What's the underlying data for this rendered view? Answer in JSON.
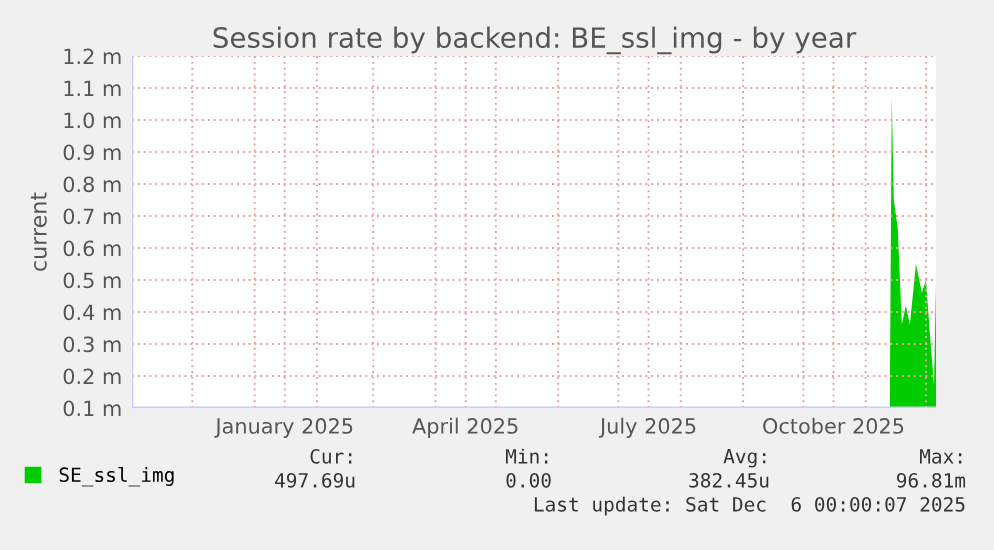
{
  "chart_data": {
    "type": "area",
    "title": "Session rate by backend: BE_ssl_img - by year",
    "ylabel": "current",
    "x": [
      "2025-11-13",
      "2025-11-14",
      "2025-11-15",
      "2025-11-17",
      "2025-11-19",
      "2025-11-21",
      "2025-11-23",
      "2025-11-26",
      "2025-11-29",
      "2025-12-01",
      "2025-12-03",
      "2025-12-05",
      "2025-12-06"
    ],
    "series": [
      {
        "name": "SE_ssl_img",
        "color": "#00cc00",
        "values": [
          0.1,
          1.07,
          0.75,
          0.66,
          0.36,
          0.42,
          0.36,
          0.55,
          0.46,
          0.5,
          0.33,
          0.17,
          0.49
        ]
      }
    ],
    "xlim": [
      "2024-11-01",
      "2025-12-06"
    ],
    "xticks": [
      {
        "value": "2024-12-01",
        "label": null
      },
      {
        "value": "2025-01-01",
        "label": null
      },
      {
        "value": "2025-01-16",
        "label": "January 2025"
      },
      {
        "value": "2025-02-01",
        "label": null
      },
      {
        "value": "2025-03-01",
        "label": null
      },
      {
        "value": "2025-04-01",
        "label": null
      },
      {
        "value": "2025-04-16",
        "label": "April 2025"
      },
      {
        "value": "2025-05-01",
        "label": null
      },
      {
        "value": "2025-06-01",
        "label": null
      },
      {
        "value": "2025-07-01",
        "label": null
      },
      {
        "value": "2025-07-16",
        "label": "July 2025"
      },
      {
        "value": "2025-08-01",
        "label": null
      },
      {
        "value": "2025-09-01",
        "label": null
      },
      {
        "value": "2025-10-01",
        "label": null
      },
      {
        "value": "2025-10-16",
        "label": "October 2025"
      },
      {
        "value": "2025-11-01",
        "label": null
      },
      {
        "value": "2025-12-01",
        "label": null
      }
    ],
    "ylim": [
      0.1,
      1.2
    ],
    "yticks": [
      {
        "value": 0.1,
        "label": "0.1 m"
      },
      {
        "value": 0.2,
        "label": "0.2 m"
      },
      {
        "value": 0.3,
        "label": "0.3 m"
      },
      {
        "value": 0.4,
        "label": "0.4 m"
      },
      {
        "value": 0.5,
        "label": "0.5 m"
      },
      {
        "value": 0.6,
        "label": "0.6 m"
      },
      {
        "value": 0.7,
        "label": "0.7 m"
      },
      {
        "value": 0.8,
        "label": "0.8 m"
      },
      {
        "value": 0.9,
        "label": "0.9 m"
      },
      {
        "value": 1.0,
        "label": "1.0 m"
      },
      {
        "value": 1.1,
        "label": "1.1 m"
      },
      {
        "value": 1.2,
        "label": "1.2 m"
      }
    ],
    "grid": true,
    "legend": "bottom left",
    "annotations": [
      "Cur:",
      "Min:",
      "Avg:",
      "Max:",
      "497.69u",
      "0.00",
      "382.45u",
      "96.81m",
      "Last update: Sat Dec  6 00:00:07 2025"
    ]
  }
}
